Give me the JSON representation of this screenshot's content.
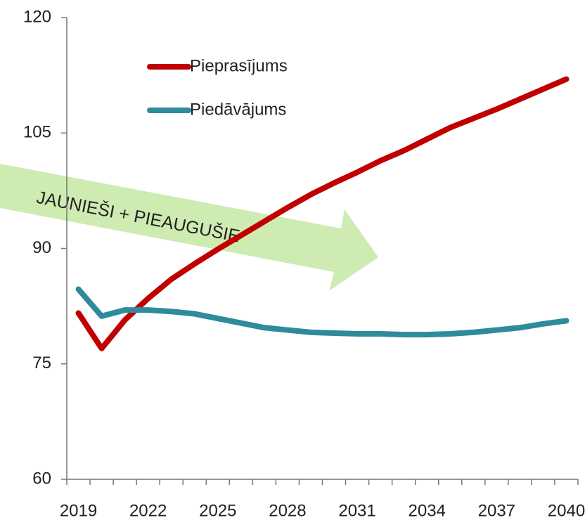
{
  "chart_data": {
    "type": "line",
    "categories": [
      "2019",
      null,
      null,
      "2022",
      null,
      null,
      "2025",
      null,
      null,
      "2028",
      null,
      null,
      "2031",
      null,
      null,
      "2034",
      null,
      null,
      "2037",
      null,
      null,
      "2040"
    ],
    "series": [
      {
        "name": "Pieprasījums",
        "color": "#c00000",
        "values": [
          81.6,
          77.0,
          80.7,
          83.5,
          86.0,
          88.0,
          89.9,
          91.7,
          93.5,
          95.3,
          97.0,
          98.5,
          99.9,
          101.4,
          102.7,
          104.2,
          105.7,
          106.9,
          108.1,
          109.4,
          110.7,
          112.0
        ]
      },
      {
        "name": "Piedāvājums",
        "color": "#2e8b9a",
        "values": [
          84.7,
          81.2,
          82.0,
          82.0,
          81.8,
          81.5,
          80.9,
          80.3,
          79.7,
          79.4,
          79.1,
          79.0,
          78.9,
          78.9,
          78.8,
          78.8,
          78.9,
          79.1,
          79.4,
          79.7,
          80.2,
          80.6
        ]
      }
    ],
    "annotation": "JAUNIEŠI + PIEAUGUŠIE",
    "ylim": [
      60,
      120
    ],
    "yticks": [
      60,
      75,
      90,
      105,
      120
    ],
    "grid": false,
    "legend": "upper left"
  }
}
